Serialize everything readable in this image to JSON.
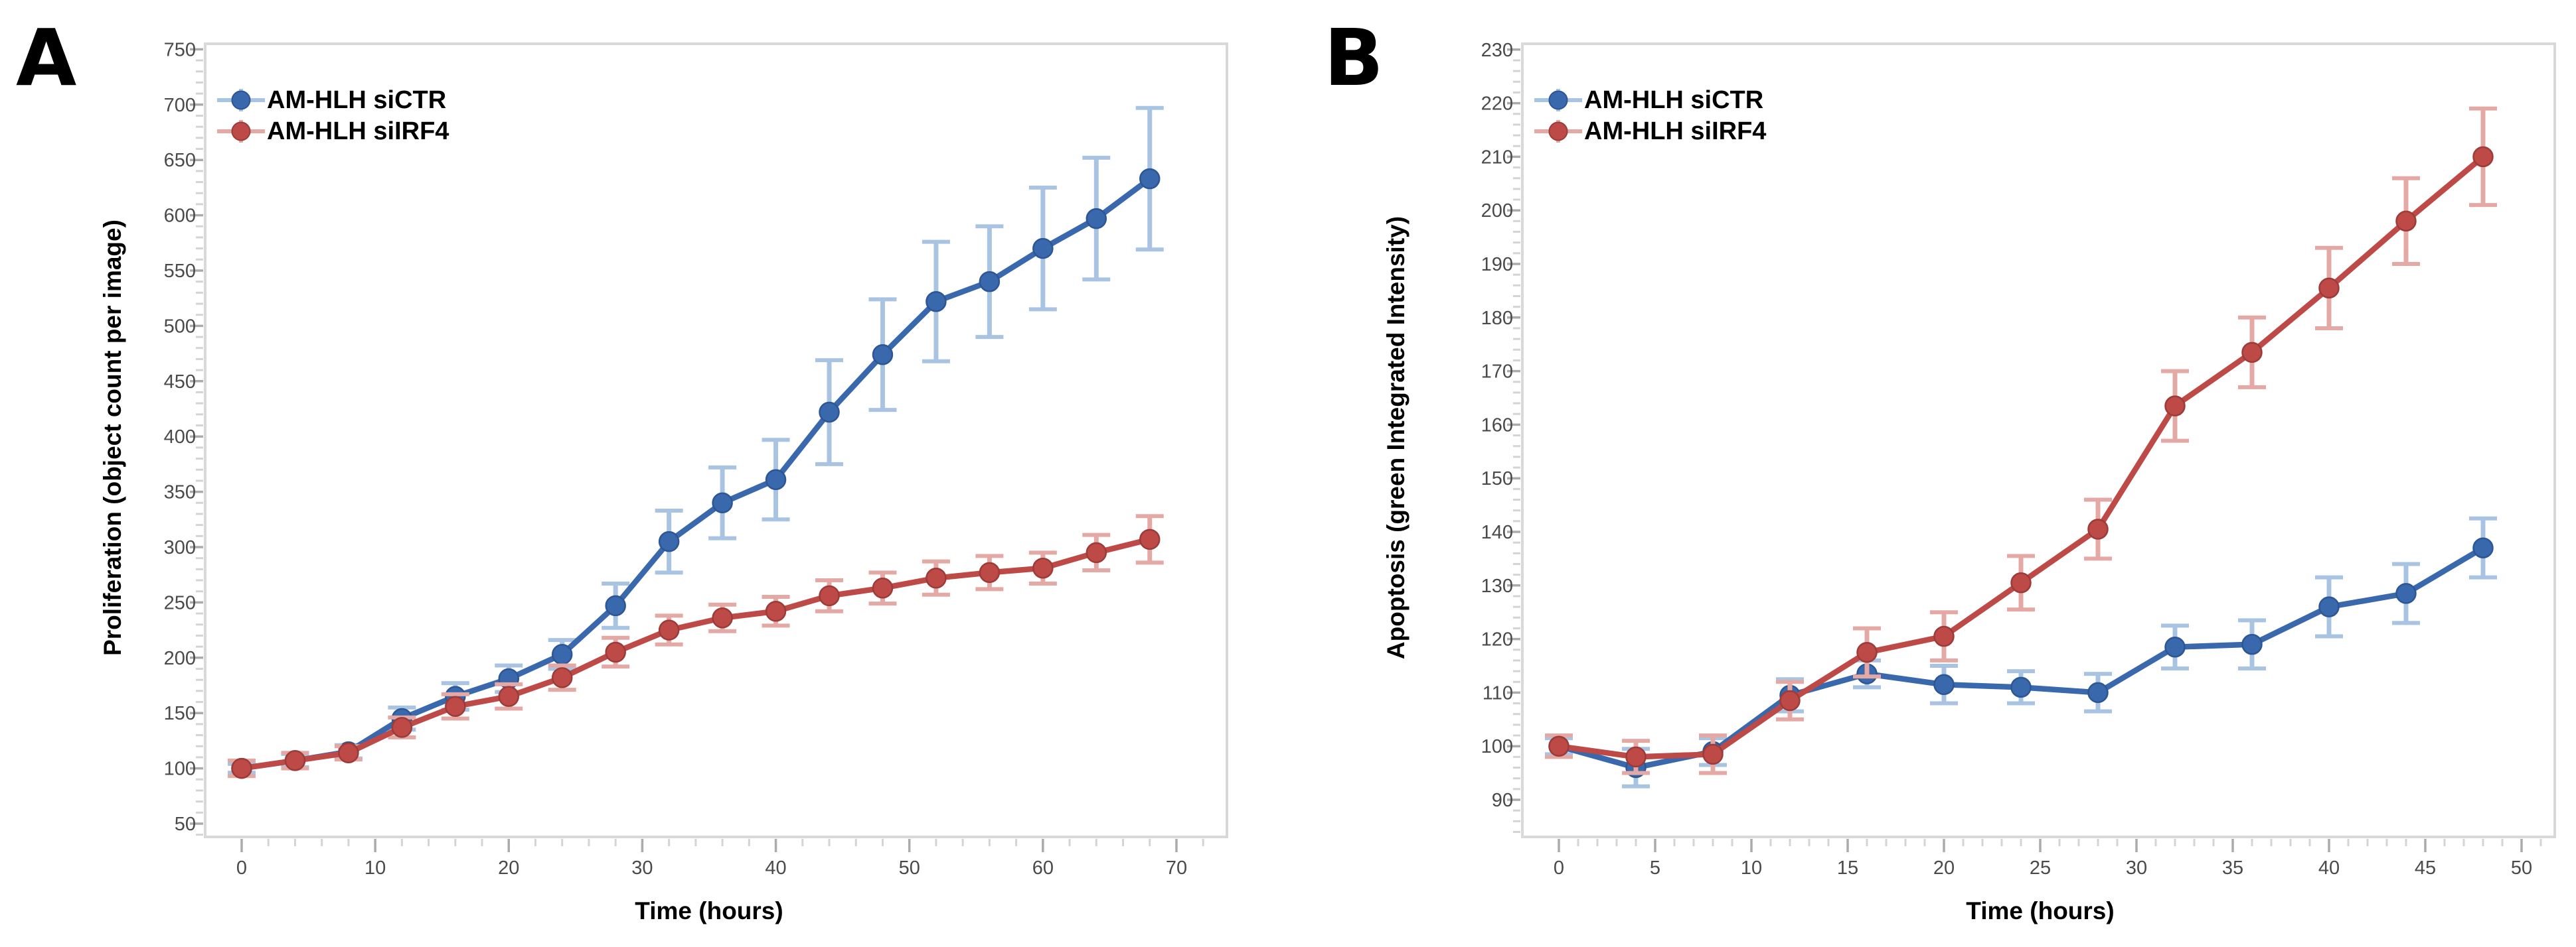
{
  "figure": {
    "background": "#ffffff",
    "panel_count": 2
  },
  "styles": {
    "frame_color": "#d9d9d9",
    "major_tick_color": "#ababab",
    "minor_tick_color": "#d4d4d4",
    "tick_label_color": "#4a4a4a",
    "text_color": "#000000"
  },
  "chart_data": [
    {
      "type": "line",
      "panel_label": "A",
      "title": "",
      "xlabel": "Time (hours)",
      "ylabel": "Proliferation (object count per image)",
      "legend_position": "top-left",
      "grid": false,
      "error_bars": true,
      "x_axis": {
        "min": 0,
        "max": 70,
        "tick_step": 10,
        "minor_step": 2,
        "tick_labels": [
          0,
          10,
          20,
          30,
          40,
          50,
          60,
          70
        ]
      },
      "y_axis": {
        "min": 50,
        "max": 750,
        "tick_step": 50,
        "minor_step": 10,
        "tick_labels": [
          50,
          100,
          150,
          200,
          250,
          300,
          350,
          400,
          450,
          500,
          550,
          600,
          650,
          700,
          750
        ]
      },
      "x": [
        0,
        4,
        8,
        12,
        16,
        20,
        24,
        28,
        32,
        36,
        40,
        44,
        48,
        52,
        56,
        60,
        64,
        68
      ],
      "series": [
        {
          "name": "AM-HLH siCTR",
          "color": "#3a68ac",
          "edge_color": "#2c5694",
          "error_color": "#a9c4e3",
          "values": [
            100,
            107,
            115,
            145,
            165,
            181,
            203,
            247,
            305,
            340,
            361,
            422,
            474,
            522,
            540,
            570,
            597,
            633
          ],
          "errors": [
            4,
            6,
            6,
            10,
            12,
            12,
            13,
            20,
            28,
            32,
            36,
            47,
            50,
            54,
            50,
            55,
            55,
            64
          ]
        },
        {
          "name": "AM-HLH siIRF4",
          "color": "#be4a47",
          "edge_color": "#9c3b38",
          "error_color": "#e5a9a5",
          "values": [
            100,
            107,
            114,
            137,
            156,
            165,
            182,
            205,
            225,
            236,
            242,
            256,
            263,
            272,
            277,
            281,
            295,
            307
          ],
          "errors": [
            7,
            7,
            6,
            9,
            11,
            11,
            11,
            13,
            13,
            12,
            13,
            14,
            14,
            15,
            15,
            14,
            16,
            21
          ]
        }
      ]
    },
    {
      "type": "line",
      "panel_label": "B",
      "title": "",
      "xlabel": "Time (hours)",
      "ylabel": "Apoptosis (green Integrated Intensity)",
      "legend_position": "top-left",
      "grid": false,
      "error_bars": true,
      "x_axis": {
        "min": 0,
        "max": 50,
        "tick_step": 5,
        "minor_step": 1,
        "tick_labels": [
          0,
          5,
          10,
          15,
          20,
          25,
          30,
          35,
          40,
          45,
          50
        ]
      },
      "y_axis": {
        "min": 90,
        "max": 230,
        "tick_step": 10,
        "minor_step": 2,
        "tick_labels": [
          90,
          100,
          110,
          120,
          130,
          140,
          150,
          160,
          170,
          180,
          190,
          200,
          210,
          220,
          230
        ]
      },
      "x": [
        0,
        4,
        8,
        12,
        16,
        20,
        24,
        28,
        32,
        36,
        40,
        44,
        48
      ],
      "series": [
        {
          "name": "AM-HLH siCTR",
          "color": "#3a68ac",
          "edge_color": "#2c5694",
          "error_color": "#a9c4e3",
          "values": [
            100,
            96,
            99,
            109.5,
            113.5,
            111.5,
            111,
            110,
            118.5,
            119,
            126,
            128.5,
            137
          ],
          "errors": [
            1.5,
            3.5,
            2.5,
            3,
            2.5,
            3.5,
            3,
            3.5,
            4,
            4.5,
            5.5,
            5.5,
            5.5
          ]
        },
        {
          "name": "AM-HLH siIRF4",
          "color": "#be4a47",
          "edge_color": "#9c3b38",
          "error_color": "#e5a9a5",
          "values": [
            100,
            98,
            98.5,
            108.5,
            117.5,
            120.5,
            130.5,
            140.5,
            163.5,
            173.5,
            185.5,
            198,
            210
          ],
          "errors": [
            2,
            3,
            3.5,
            3.5,
            4.5,
            4.5,
            5,
            5.5,
            6.5,
            6.5,
            7.5,
            8,
            9
          ]
        }
      ]
    }
  ]
}
